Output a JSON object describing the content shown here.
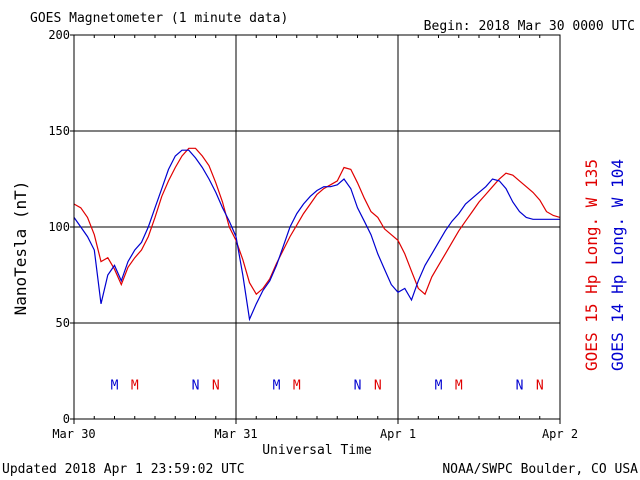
{
  "header": {
    "title": "GOES Magnetometer (1 minute data)",
    "begin": "Begin:  2018 Mar 30 0000 UTC"
  },
  "footer": {
    "updated": "Updated 2018 Apr  1 23:59:02 UTC",
    "source": "NOAA/SWPC Boulder, CO USA"
  },
  "colors": {
    "goes15": "#e00000",
    "goes14": "#0000d0",
    "grid": "#000000"
  },
  "chart_data": {
    "type": "line",
    "title": "GOES Magnetometer (1 minute data)",
    "xlabel": "Universal Time",
    "ylabel": "NanoTesla (nT)",
    "xlim": [
      0,
      72
    ],
    "ylim": [
      0,
      200
    ],
    "y_ticks": [
      0,
      50,
      100,
      150,
      200
    ],
    "x_ticks": [
      {
        "hour": 0,
        "label": "Mar 30"
      },
      {
        "hour": 24,
        "label": "Mar 31"
      },
      {
        "hour": 48,
        "label": "Apr 1"
      },
      {
        "hour": 72,
        "label": "Apr 2"
      }
    ],
    "grid": true,
    "series": [
      {
        "name": "GOES 15 Hp  Long. W 135",
        "color": "#e00000",
        "hours": [
          0,
          1,
          2,
          3,
          4,
          5,
          6,
          7,
          8,
          9,
          10,
          11,
          12,
          13,
          14,
          15,
          16,
          17,
          18,
          19,
          20,
          21,
          22,
          23,
          24,
          25,
          26,
          27,
          28,
          29,
          30,
          31,
          32,
          33,
          34,
          35,
          36,
          37,
          38,
          39,
          40,
          41,
          42,
          43,
          44,
          45,
          46,
          47,
          48,
          49,
          50,
          51,
          52,
          53,
          54,
          55,
          56,
          57,
          58,
          59,
          60,
          61,
          62,
          63,
          64,
          65,
          66,
          67,
          68,
          69,
          70,
          71,
          72
        ],
        "values": [
          112,
          110,
          105,
          96,
          82,
          84,
          78,
          70,
          79,
          84,
          88,
          95,
          105,
          116,
          124,
          131,
          137,
          141,
          141,
          137,
          132,
          123,
          113,
          100,
          93,
          83,
          71,
          65,
          68,
          73,
          81,
          88,
          95,
          101,
          107,
          112,
          117,
          120,
          122,
          124,
          131,
          130,
          123,
          115,
          108,
          105,
          99,
          96,
          93,
          86,
          77,
          68,
          65,
          74,
          80,
          86,
          92,
          98,
          103,
          108,
          113,
          117,
          121,
          125,
          128,
          127,
          124,
          121,
          118,
          114,
          108,
          106,
          105
        ]
      },
      {
        "name": "GOES 14 Hp  Long. W 104",
        "color": "#0000d0",
        "hours": [
          0,
          1,
          2,
          3,
          4,
          5,
          6,
          7,
          8,
          9,
          10,
          11,
          12,
          13,
          14,
          15,
          16,
          17,
          18,
          19,
          20,
          21,
          22,
          23,
          24,
          25,
          26,
          27,
          28,
          29,
          30,
          31,
          32,
          33,
          34,
          35,
          36,
          37,
          38,
          39,
          40,
          41,
          42,
          43,
          44,
          45,
          46,
          47,
          48,
          49,
          50,
          51,
          52,
          53,
          54,
          55,
          56,
          57,
          58,
          59,
          60,
          61,
          62,
          63,
          64,
          65,
          66,
          67,
          68,
          69,
          70,
          71,
          72
        ],
        "values": [
          105,
          100,
          95,
          88,
          60,
          75,
          80,
          72,
          82,
          88,
          92,
          100,
          110,
          120,
          130,
          137,
          140,
          140,
          136,
          131,
          125,
          118,
          110,
          103,
          95,
          75,
          52,
          60,
          67,
          72,
          80,
          90,
          100,
          107,
          112,
          116,
          119,
          121,
          121,
          122,
          125,
          120,
          110,
          103,
          96,
          86,
          78,
          70,
          66,
          68,
          62,
          72,
          80,
          86,
          92,
          98,
          103,
          107,
          112,
          115,
          118,
          121,
          125,
          124,
          120,
          113,
          108,
          105,
          104,
          104,
          104,
          104,
          104
        ]
      }
    ],
    "markers": [
      {
        "text": "M",
        "hour": 6.0,
        "series": "GOES 14 Hp  Long. W 104"
      },
      {
        "text": "M",
        "hour": 9.0,
        "series": "GOES 15 Hp  Long. W 135"
      },
      {
        "text": "N",
        "hour": 18.0,
        "series": "GOES 14 Hp  Long. W 104"
      },
      {
        "text": "N",
        "hour": 21.0,
        "series": "GOES 15 Hp  Long. W 135"
      },
      {
        "text": "M",
        "hour": 30.0,
        "series": "GOES 14 Hp  Long. W 104"
      },
      {
        "text": "M",
        "hour": 33.0,
        "series": "GOES 15 Hp  Long. W 135"
      },
      {
        "text": "N",
        "hour": 42.0,
        "series": "GOES 14 Hp  Long. W 104"
      },
      {
        "text": "N",
        "hour": 45.0,
        "series": "GOES 15 Hp  Long. W 135"
      },
      {
        "text": "M",
        "hour": 54.0,
        "series": "GOES 14 Hp  Long. W 104"
      },
      {
        "text": "M",
        "hour": 57.0,
        "series": "GOES 15 Hp  Long. W 135"
      },
      {
        "text": "N",
        "hour": 66.0,
        "series": "GOES 14 Hp  Long. W 104"
      },
      {
        "text": "N",
        "hour": 69.0,
        "series": "GOES 15 Hp  Long. W 135"
      }
    ],
    "marker_level": 18
  }
}
